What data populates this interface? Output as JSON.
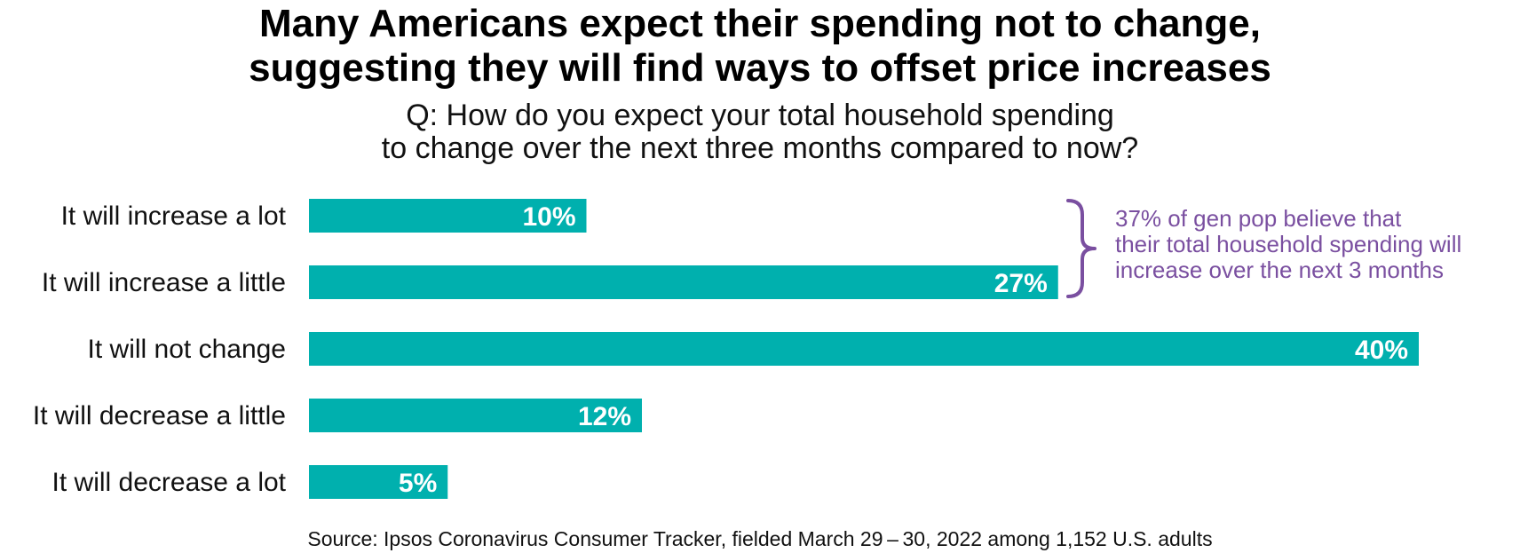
{
  "title": {
    "line1": "Many Americans expect their spending not to change,",
    "line2": "suggesting they will find ways to offset price increases"
  },
  "subtitle": {
    "line1": "Q: How do you expect your total household spending",
    "line2": "to change over the next three months compared to now?"
  },
  "annotation": {
    "lines": [
      "37% of gen pop believe that",
      "their total household spending will",
      "increase over the next 3 months"
    ],
    "color": "#7a4fa0"
  },
  "source": "Source: Ipsos Coronavirus Consumer Tracker, fielded March 29 – 30, 2022 among 1,152 U.S. adults",
  "colors": {
    "bar": "#00b0ae",
    "label": "#ffffff",
    "annotation": "#7a4fa0"
  },
  "chart_data": {
    "type": "bar",
    "orientation": "horizontal",
    "categories": [
      "It will increase a lot",
      "It will increase a little",
      "It will not change",
      "It will decrease a little",
      "It will decrease a lot"
    ],
    "values": [
      10,
      27,
      40,
      12,
      5
    ],
    "value_labels": [
      "10%",
      "27%",
      "40%",
      "12%",
      "5%"
    ],
    "unit": "%",
    "xlim": [
      0,
      40
    ],
    "grid": false,
    "legend": false
  }
}
